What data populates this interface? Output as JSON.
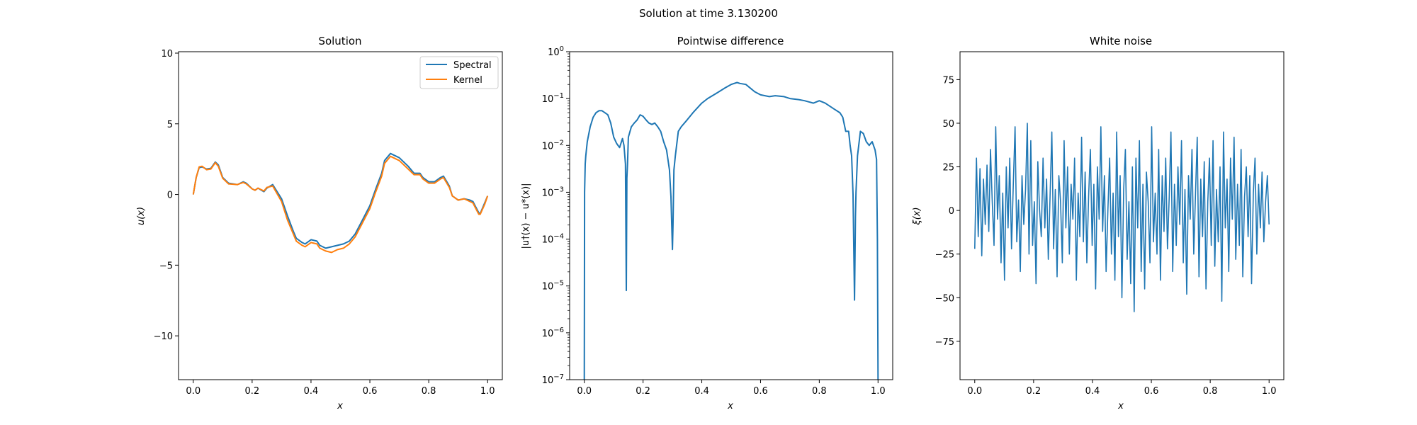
{
  "figure": {
    "suptitle": "Solution at time 3.130200"
  },
  "colors": {
    "spectral": "#1f77b4",
    "kernel": "#ff7f0e",
    "noise": "#1f77b4",
    "difference": "#1f77b4",
    "frame": "#000000"
  },
  "chart_data": [
    {
      "type": "line",
      "title": "Solution",
      "xlabel": "x",
      "ylabel": "u(x)",
      "xlim": [
        -0.05,
        1.05
      ],
      "ylim": [
        -13.1,
        10.1
      ],
      "xticks": [
        "0.0",
        "0.2",
        "0.4",
        "0.6",
        "0.8",
        "1.0"
      ],
      "yticks": [
        "10",
        "5",
        "0",
        "-5",
        "-10"
      ],
      "ytick_values": [
        10,
        5,
        0,
        -5,
        -10
      ],
      "grid": false,
      "legend": "top-right",
      "series": [
        {
          "name": "Spectral",
          "color": "#1f77b4",
          "x": [
            0.0,
            0.01,
            0.02,
            0.03,
            0.045,
            0.06,
            0.075,
            0.085,
            0.1,
            0.12,
            0.15,
            0.17,
            0.18,
            0.2,
            0.21,
            0.22,
            0.24,
            0.25,
            0.27,
            0.3,
            0.32,
            0.34,
            0.35,
            0.37,
            0.38,
            0.4,
            0.42,
            0.43,
            0.45,
            0.47,
            0.49,
            0.51,
            0.53,
            0.55,
            0.57,
            0.6,
            0.62,
            0.64,
            0.65,
            0.67,
            0.7,
            0.73,
            0.75,
            0.77,
            0.78,
            0.8,
            0.82,
            0.84,
            0.85,
            0.87,
            0.88,
            0.9,
            0.92,
            0.94,
            0.95,
            0.96,
            0.97,
            0.975,
            0.99,
            1.0
          ],
          "y": [
            0.0,
            1.2,
            1.9,
            1.95,
            1.8,
            1.85,
            2.3,
            2.1,
            1.2,
            0.8,
            0.7,
            0.9,
            0.8,
            0.4,
            0.3,
            0.45,
            0.2,
            0.45,
            0.7,
            -0.3,
            -1.5,
            -2.6,
            -3.1,
            -3.4,
            -3.5,
            -3.2,
            -3.3,
            -3.6,
            -3.8,
            -3.7,
            -3.6,
            -3.5,
            -3.3,
            -2.8,
            -2.0,
            -0.8,
            0.4,
            1.5,
            2.4,
            2.9,
            2.6,
            2.0,
            1.5,
            1.5,
            1.2,
            0.9,
            0.9,
            1.2,
            1.3,
            0.6,
            -0.1,
            -0.4,
            -0.3,
            -0.4,
            -0.5,
            -0.9,
            -1.3,
            -1.35,
            -0.6,
            -0.1
          ]
        },
        {
          "name": "Kernel",
          "color": "#ff7f0e",
          "x": [
            0.0,
            0.01,
            0.02,
            0.03,
            0.045,
            0.06,
            0.075,
            0.085,
            0.1,
            0.12,
            0.15,
            0.17,
            0.18,
            0.2,
            0.21,
            0.22,
            0.24,
            0.25,
            0.27,
            0.3,
            0.32,
            0.34,
            0.35,
            0.37,
            0.38,
            0.4,
            0.42,
            0.43,
            0.45,
            0.47,
            0.49,
            0.51,
            0.53,
            0.55,
            0.57,
            0.6,
            0.62,
            0.64,
            0.65,
            0.67,
            0.7,
            0.73,
            0.75,
            0.77,
            0.78,
            0.8,
            0.82,
            0.84,
            0.85,
            0.87,
            0.88,
            0.9,
            0.92,
            0.94,
            0.95,
            0.96,
            0.97,
            0.975,
            0.99,
            1.0
          ],
          "y": [
            0.0,
            1.2,
            1.95,
            2.0,
            1.75,
            1.8,
            2.25,
            2.0,
            1.15,
            0.75,
            0.7,
            0.85,
            0.75,
            0.4,
            0.3,
            0.45,
            0.25,
            0.5,
            0.6,
            -0.5,
            -1.8,
            -2.8,
            -3.3,
            -3.6,
            -3.7,
            -3.4,
            -3.5,
            -3.8,
            -4.0,
            -4.1,
            -3.9,
            -3.8,
            -3.5,
            -3.0,
            -2.2,
            -1.0,
            0.2,
            1.3,
            2.2,
            2.7,
            2.4,
            1.8,
            1.4,
            1.4,
            1.1,
            0.8,
            0.8,
            1.1,
            1.2,
            0.5,
            -0.1,
            -0.4,
            -0.3,
            -0.5,
            -0.6,
            -1.0,
            -1.4,
            -1.4,
            -0.7,
            -0.1
          ]
        }
      ]
    },
    {
      "type": "line",
      "title": "Pointwise difference",
      "xlabel": "x",
      "ylabel": "|u†(x) − u*(x)|",
      "xlim": [
        -0.05,
        1.05
      ],
      "ylim": [
        1e-07,
        1
      ],
      "yscale": "log",
      "xticks": [
        "0.0",
        "0.2",
        "0.4",
        "0.6",
        "0.8",
        "1.0"
      ],
      "ytick_exponents": [
        0,
        -1,
        -2,
        -3,
        -4,
        -5,
        -6,
        -7
      ],
      "grid": false,
      "series": [
        {
          "color": "#1f77b4",
          "x": [
            0.0,
            0.001,
            0.003,
            0.005,
            0.01,
            0.02,
            0.03,
            0.04,
            0.05,
            0.06,
            0.07,
            0.08,
            0.09,
            0.1,
            0.11,
            0.12,
            0.13,
            0.135,
            0.14,
            0.143,
            0.145,
            0.147,
            0.15,
            0.16,
            0.17,
            0.18,
            0.19,
            0.2,
            0.21,
            0.22,
            0.23,
            0.24,
            0.25,
            0.26,
            0.27,
            0.28,
            0.29,
            0.295,
            0.3,
            0.302,
            0.305,
            0.31,
            0.32,
            0.33,
            0.35,
            0.37,
            0.4,
            0.42,
            0.45,
            0.48,
            0.5,
            0.52,
            0.53,
            0.55,
            0.58,
            0.6,
            0.63,
            0.65,
            0.68,
            0.7,
            0.73,
            0.75,
            0.78,
            0.8,
            0.82,
            0.85,
            0.87,
            0.88,
            0.89,
            0.9,
            0.905,
            0.91,
            0.915,
            0.92,
            0.923,
            0.925,
            0.93,
            0.94,
            0.95,
            0.96,
            0.97,
            0.98,
            0.99,
            0.995,
            0.998,
            1.0
          ],
          "y": [
            1e-07,
            0.001,
            0.004,
            0.006,
            0.012,
            0.025,
            0.04,
            0.05,
            0.055,
            0.055,
            0.05,
            0.045,
            0.03,
            0.015,
            0.011,
            0.009,
            0.014,
            0.01,
            0.004,
            8e-06,
            0.002,
            0.004,
            0.015,
            0.025,
            0.03,
            0.035,
            0.045,
            0.042,
            0.035,
            0.03,
            0.028,
            0.03,
            0.025,
            0.02,
            0.012,
            0.008,
            0.003,
            0.0008,
            6e-05,
            0.0002,
            0.003,
            0.006,
            0.02,
            0.025,
            0.035,
            0.05,
            0.08,
            0.1,
            0.13,
            0.17,
            0.2,
            0.22,
            0.21,
            0.2,
            0.14,
            0.12,
            0.11,
            0.115,
            0.11,
            0.1,
            0.095,
            0.09,
            0.08,
            0.09,
            0.08,
            0.06,
            0.05,
            0.04,
            0.02,
            0.02,
            0.01,
            0.006,
            0.0009,
            5e-06,
            0.0003,
            0.001,
            0.006,
            0.02,
            0.018,
            0.012,
            0.01,
            0.012,
            0.008,
            0.005,
            0.0001,
            1e-07
          ]
        }
      ]
    },
    {
      "type": "line",
      "title": "White noise",
      "xlabel": "x",
      "ylabel": "ξ(x)",
      "xlim": [
        -0.05,
        1.05
      ],
      "ylim": [
        -97,
        91
      ],
      "xticks": [
        "0.0",
        "0.2",
        "0.4",
        "0.6",
        "0.8",
        "1.0"
      ],
      "yticks": [
        "75",
        "50",
        "25",
        "0",
        "-25",
        "-50",
        "-75"
      ],
      "ytick_values": [
        75,
        50,
        25,
        0,
        -25,
        -50,
        -75
      ],
      "grid": false,
      "series": [
        {
          "color": "#1f77b4",
          "x_range": [
            0,
            1
          ],
          "y": [
            -22,
            30,
            -15,
            24,
            -26,
            18,
            -8,
            26,
            -12,
            35,
            5,
            -20,
            48,
            -5,
            20,
            -30,
            10,
            -40,
            25,
            -10,
            30,
            -22,
            15,
            48,
            -18,
            6,
            -35,
            20,
            -8,
            12,
            50,
            -25,
            40,
            -20,
            5,
            -42,
            28,
            0,
            -15,
            30,
            -10,
            18,
            -28,
            8,
            45,
            -22,
            12,
            -38,
            20,
            5,
            -30,
            40,
            -10,
            25,
            -25,
            15,
            -5,
            30,
            -40,
            10,
            -15,
            42,
            -18,
            22,
            -30,
            8,
            35,
            -20,
            15,
            -45,
            25,
            -5,
            48,
            -12,
            20,
            -35,
            0,
            30,
            -25,
            10,
            -40,
            45,
            -15,
            20,
            -50,
            12,
            35,
            -28,
            5,
            -42,
            25,
            -58,
            30,
            -10,
            40,
            -35,
            15,
            -45,
            22,
            5,
            -30,
            48,
            -18,
            10,
            -25,
            35,
            -40,
            20,
            -12,
            30,
            -22,
            8,
            45,
            -35,
            15,
            -20,
            25,
            -8,
            40,
            -30,
            12,
            -48,
            20,
            -5,
            35,
            -25,
            10,
            42,
            -38,
            18,
            -15,
            28,
            -45,
            5,
            30,
            -20,
            40,
            -32,
            12,
            -18,
            25,
            -52,
            45,
            -10,
            18,
            -35,
            30,
            -5,
            42,
            -28,
            15,
            -20,
            35,
            -38,
            8,
            25,
            -15,
            20,
            -42,
            10,
            30,
            -25,
            15,
            -10,
            22,
            -18,
            5,
            20,
            -8
          ]
        }
      ]
    }
  ]
}
